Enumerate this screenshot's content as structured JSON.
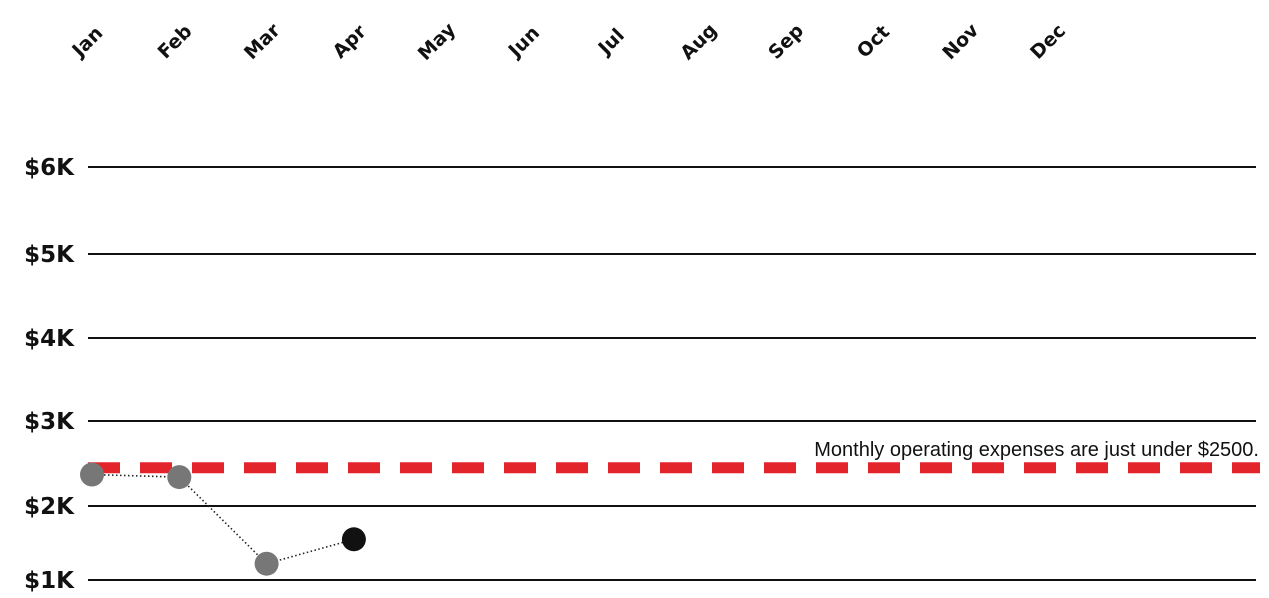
{
  "chart_data": {
    "type": "line",
    "title": "",
    "xlabel": "",
    "ylabel": "",
    "categories": [
      "Jan",
      "Feb",
      "Mar",
      "Apr",
      "May",
      "Jun",
      "Jul",
      "Aug",
      "Sep",
      "Oct",
      "Nov",
      "Dec"
    ],
    "y_ticks": [
      {
        "value": 1000,
        "label": "$1K"
      },
      {
        "value": 2000,
        "label": "$2K"
      },
      {
        "value": 3000,
        "label": "$3K"
      },
      {
        "value": 4000,
        "label": "$4K"
      },
      {
        "value": 5000,
        "label": "$5K"
      },
      {
        "value": 6000,
        "label": "$6K"
      }
    ],
    "ylim": [
      1000,
      6000
    ],
    "grid": true,
    "series": [
      {
        "values": [
          {
            "x": "Jan",
            "y": 2370
          },
          {
            "x": "Feb",
            "y": 2340
          },
          {
            "x": "Mar",
            "y": 1220
          },
          {
            "x": "Apr",
            "y": 1550
          }
        ]
      }
    ],
    "point_colors": {
      "past": "#777777",
      "current": "#111111"
    },
    "reference_line": {
      "value": 2450,
      "label": "Monthly operating expenses are just under $2500.",
      "color": "#e3242b",
      "style": "dashed"
    }
  }
}
